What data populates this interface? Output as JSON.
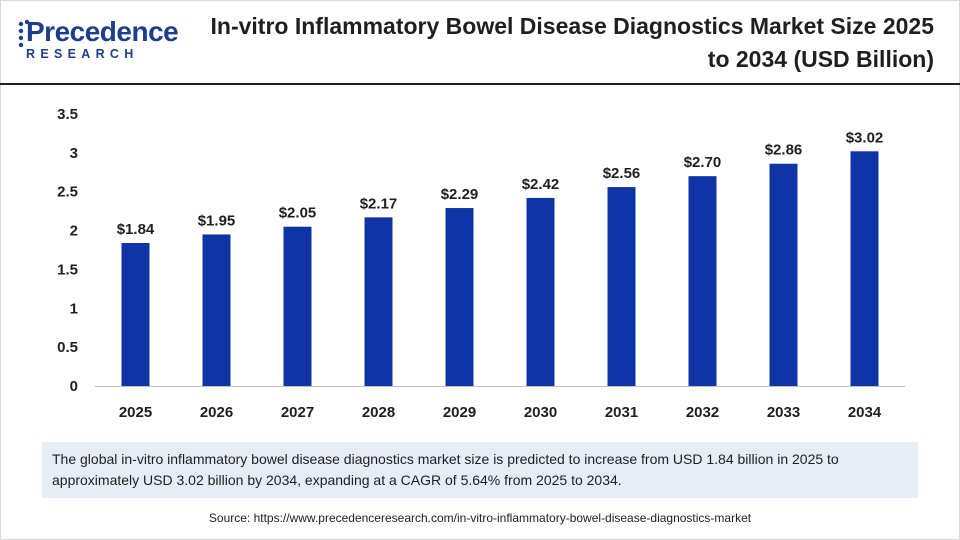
{
  "brand": {
    "name": "Precedence",
    "subtitle": "RESEARCH",
    "color": "#1d3e8c"
  },
  "title": "In-vitro Inflammatory Bowel Disease Diagnostics Market Size 2025 to 2034 (USD Billion)",
  "chart_data": {
    "type": "bar",
    "categories": [
      "2025",
      "2026",
      "2027",
      "2028",
      "2029",
      "2030",
      "2031",
      "2032",
      "2033",
      "2034"
    ],
    "values": [
      1.84,
      1.95,
      2.05,
      2.17,
      2.29,
      2.42,
      2.56,
      2.7,
      2.86,
      3.02
    ],
    "data_labels": [
      "$1.84",
      "$1.95",
      "$2.05",
      "$2.17",
      "$2.29",
      "$2.42",
      "$2.56",
      "$2.70",
      "$2.86",
      "$3.02"
    ],
    "yticks": [
      "0",
      "0.5",
      "1",
      "1.5",
      "2",
      "2.5",
      "3",
      "3.5"
    ],
    "ylim": [
      0,
      3.5
    ],
    "xlabel": "",
    "ylabel": "",
    "grid": false,
    "legend": "none",
    "bar_color": "#0f34a6"
  },
  "summary": "The global in-vitro inflammatory bowel disease diagnostics market size is predicted to increase from USD 1.84 billion in 2025 to approximately USD 3.02 billion by 2034, expanding at a CAGR of 5.64% from 2025 to 2034.",
  "source": "Source: https://www.precedenceresearch.com/in-vitro-inflammatory-bowel-disease-diagnostics-market"
}
